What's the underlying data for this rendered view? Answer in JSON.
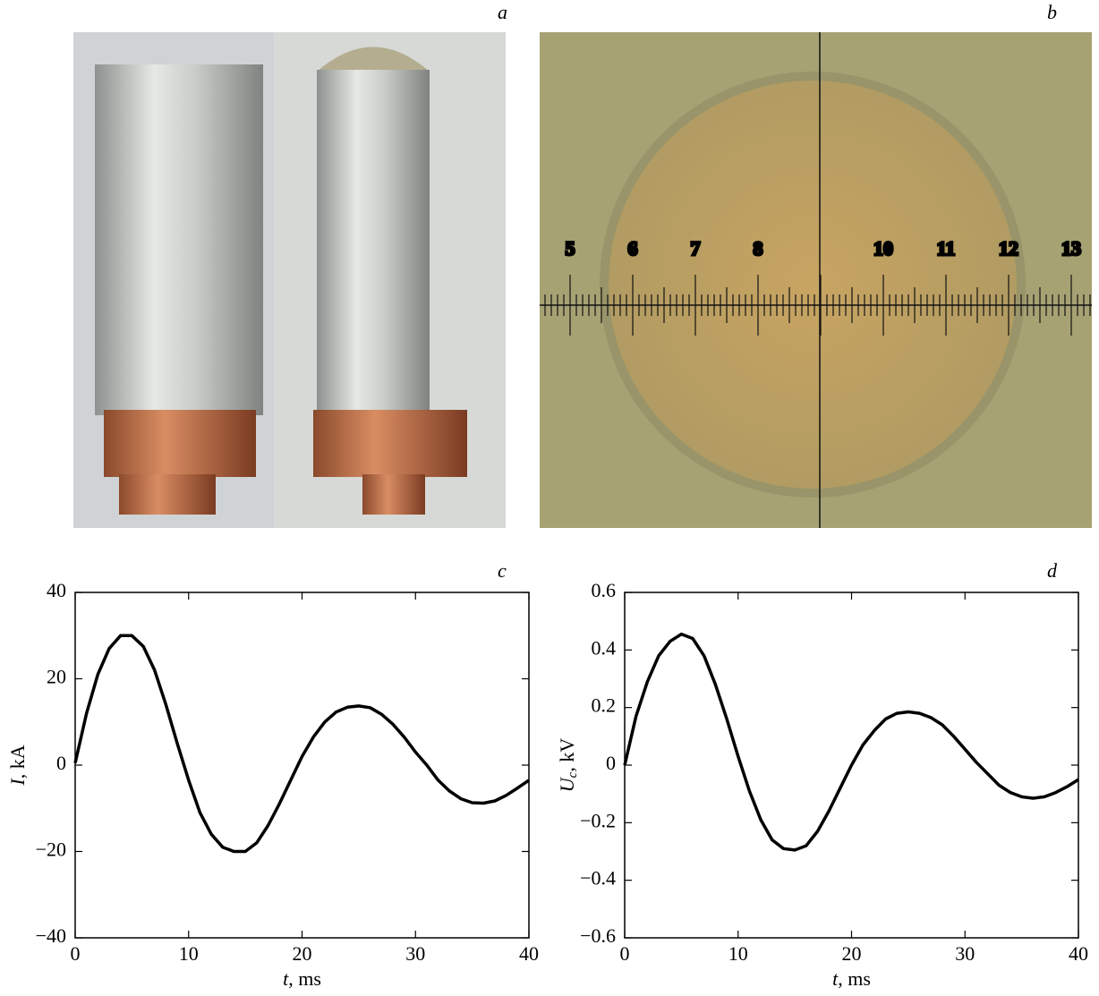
{
  "panels": {
    "a": {
      "label": "a"
    },
    "b": {
      "label": "b",
      "scale_labels": [
        5,
        6,
        7,
        8,
        10,
        11,
        12,
        13
      ]
    }
  },
  "chart_data": [
    {
      "type": "line",
      "panel_label": "c",
      "color": "#000000",
      "x": [
        0,
        1,
        2,
        3,
        4,
        5,
        6,
        7,
        8,
        9,
        10,
        11,
        12,
        13,
        14,
        15,
        16,
        17,
        18,
        19,
        20,
        21,
        22,
        23,
        24,
        25,
        26,
        27,
        28,
        29,
        30,
        31,
        32,
        33,
        34,
        35,
        36,
        37,
        38,
        39,
        40
      ],
      "values": [
        0.5,
        12,
        21,
        27,
        30,
        30,
        27.5,
        22,
        14,
        5,
        -3.5,
        -11,
        -16,
        -19,
        -20,
        -20,
        -18,
        -14,
        -9,
        -3.5,
        2,
        6.5,
        10,
        12.3,
        13.4,
        13.7,
        13.3,
        11.8,
        9.5,
        6.5,
        3,
        0,
        -3.5,
        -6,
        -7.8,
        -8.7,
        -8.8,
        -8.3,
        -7,
        -5.3,
        -3.5
      ],
      "xlim": [
        0,
        40
      ],
      "xticks": [
        0,
        10,
        20,
        30,
        40
      ],
      "ylim": [
        -40,
        40
      ],
      "yticks": [
        {
          "value": -40,
          "label": "−40"
        },
        {
          "value": -20,
          "label": "−20"
        },
        0,
        20,
        40
      ],
      "xlabel": {
        "symbol": "t",
        "unit": ", ms"
      },
      "ylabel": {
        "symbol": "I",
        "unit": ", kA"
      }
    },
    {
      "type": "line",
      "panel_label": "d",
      "color": "#000000",
      "x": [
        0,
        1,
        2,
        3,
        4,
        5,
        6,
        7,
        8,
        9,
        10,
        11,
        12,
        13,
        14,
        15,
        16,
        17,
        18,
        19,
        20,
        21,
        22,
        23,
        24,
        25,
        26,
        27,
        28,
        29,
        30,
        31,
        32,
        33,
        34,
        35,
        36,
        37,
        38,
        39,
        40
      ],
      "values": [
        0,
        0.17,
        0.29,
        0.38,
        0.43,
        0.455,
        0.44,
        0.38,
        0.28,
        0.16,
        0.03,
        -0.09,
        -0.19,
        -0.26,
        -0.29,
        -0.295,
        -0.28,
        -0.23,
        -0.16,
        -0.08,
        0,
        0.07,
        0.12,
        0.16,
        0.18,
        0.185,
        0.18,
        0.165,
        0.14,
        0.1,
        0.055,
        0.01,
        -0.03,
        -0.07,
        -0.095,
        -0.11,
        -0.115,
        -0.11,
        -0.095,
        -0.075,
        -0.05
      ],
      "xlim": [
        0,
        40
      ],
      "xticks": [
        0,
        10,
        20,
        30,
        40
      ],
      "ylim": [
        -0.6,
        0.6
      ],
      "yticks": [
        {
          "value": -0.6,
          "label": "−0.6"
        },
        {
          "value": -0.4,
          "label": "−0.4"
        },
        {
          "value": -0.2,
          "label": "−0.2"
        },
        0,
        0.2,
        0.4,
        0.6
      ],
      "xlabel": {
        "symbol": "t",
        "unit": ", ms"
      },
      "ylabel": {
        "symbol": "U",
        "subscript": "c",
        "unit": ", kV"
      }
    }
  ]
}
